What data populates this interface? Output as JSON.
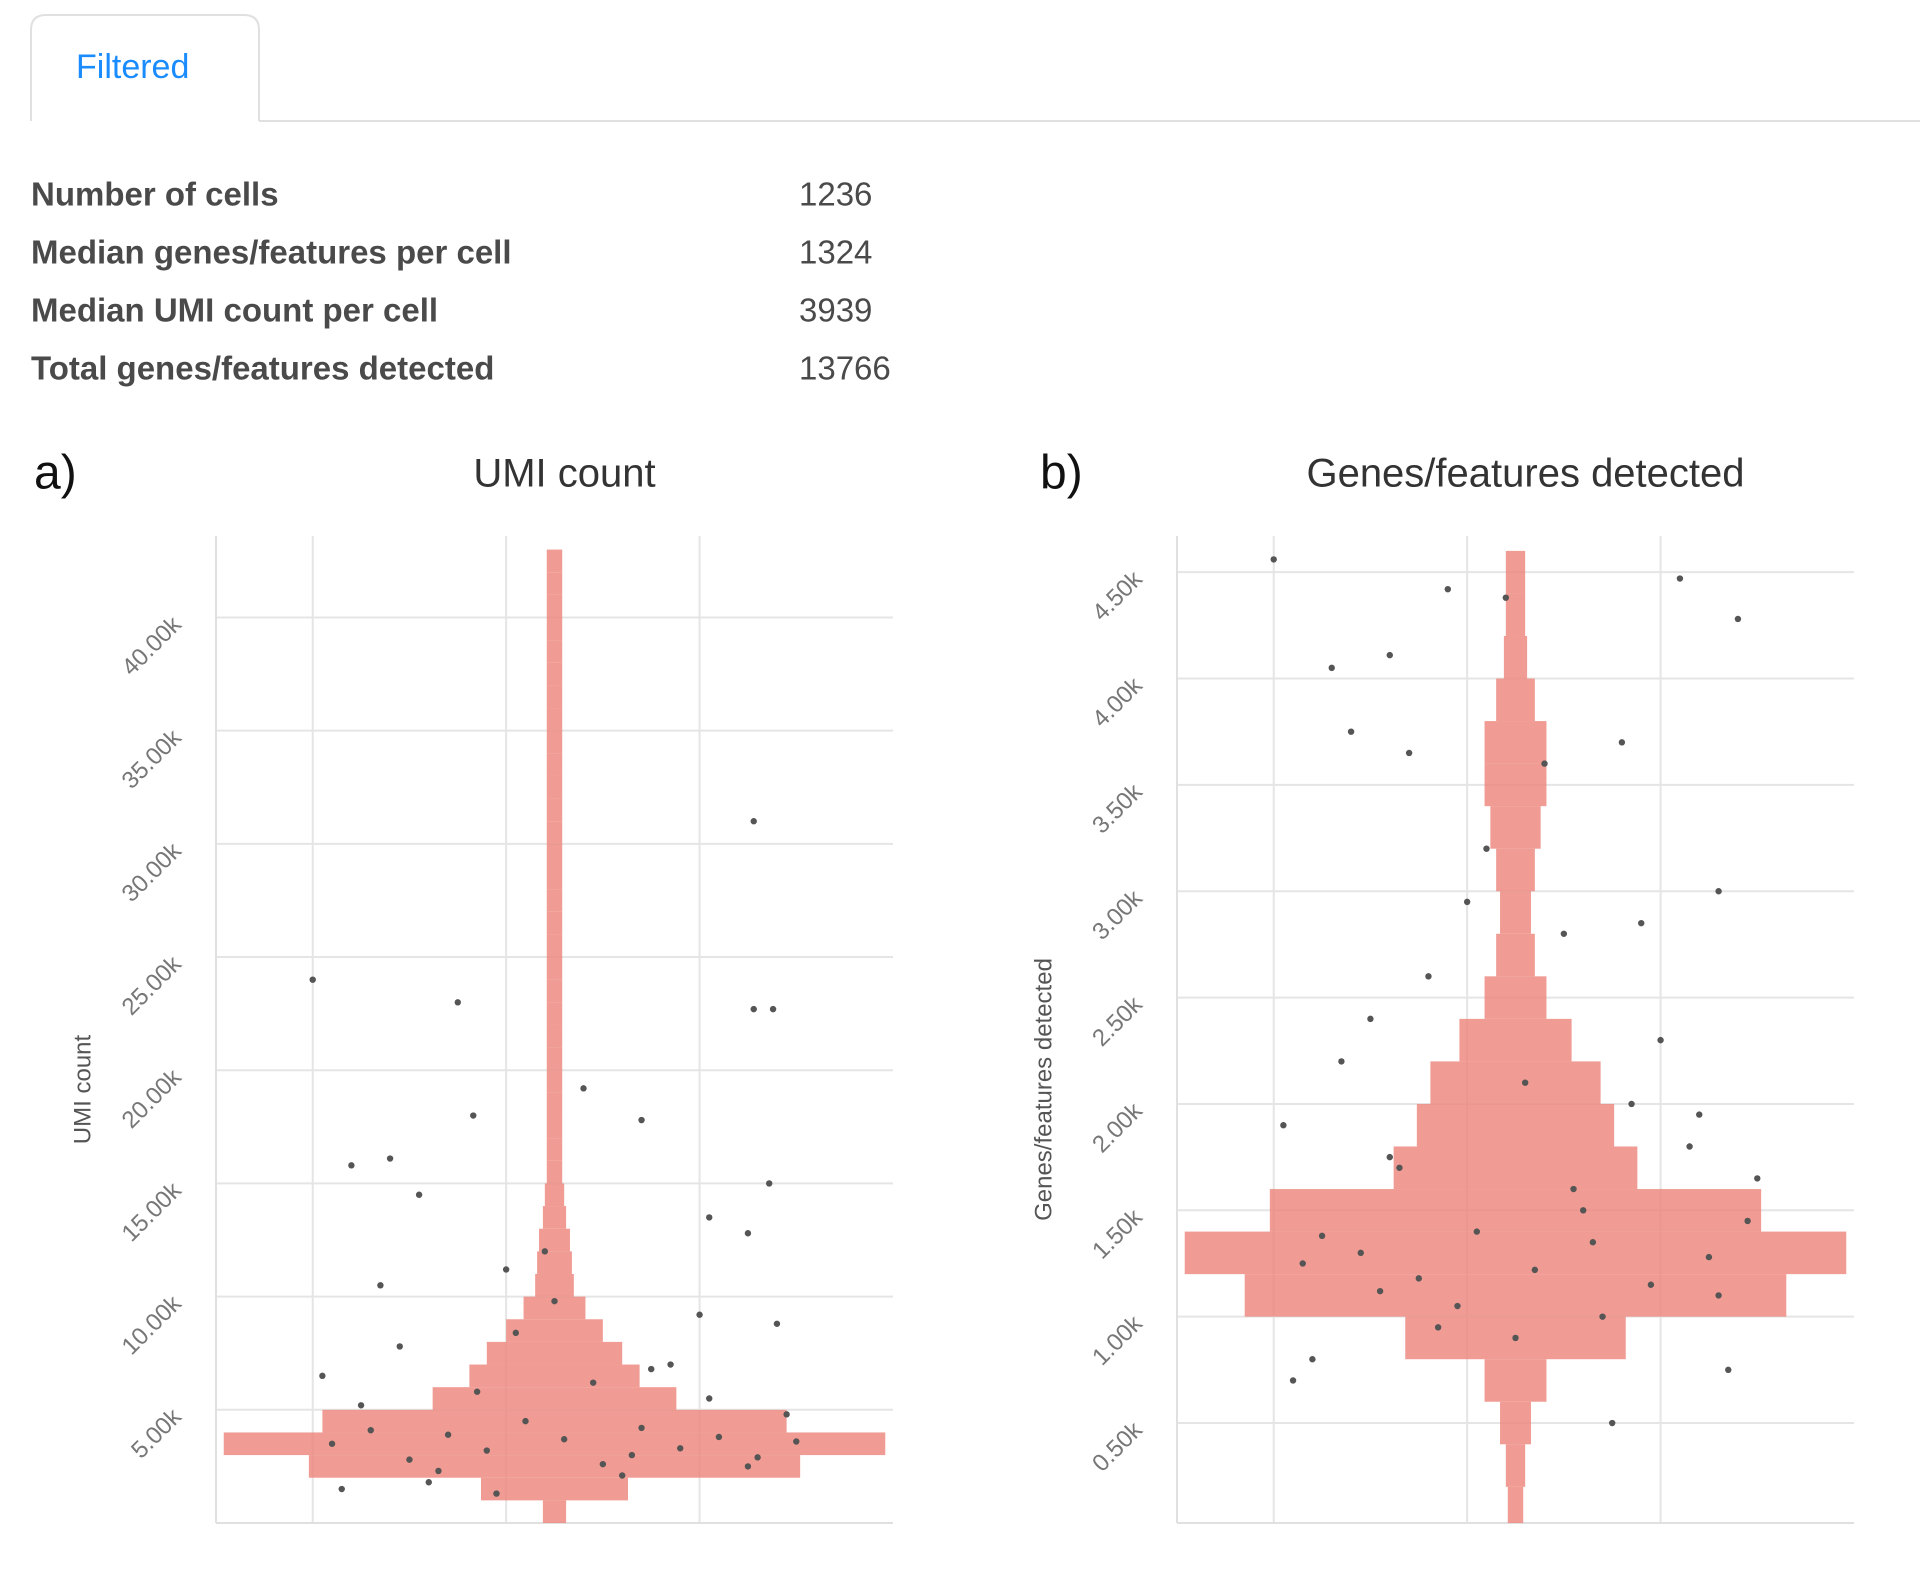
{
  "tab": "Filtered",
  "summary": {
    "rows": [
      [
        "Number of cells",
        1236
      ],
      [
        "Median genes/features per cell",
        1324
      ],
      [
        "Median UMI count per cell",
        3939
      ],
      [
        "Total genes/features detected",
        13766
      ]
    ]
  },
  "chart_data": [
    {
      "type": "violin",
      "panel": "a)",
      "title": "UMI count",
      "y_label": "UMI count",
      "ylim": [
        0,
        43600
      ],
      "yticks": [
        {
          "value": 5000,
          "label": "5.00k"
        },
        {
          "value": 10000,
          "label": "10.00k"
        },
        {
          "value": 15000,
          "label": "15.00k"
        },
        {
          "value": 20000,
          "label": "20.00k"
        },
        {
          "value": 25000,
          "label": "25.00k"
        },
        {
          "value": 30000,
          "label": "30.00k"
        },
        {
          "value": 35000,
          "label": "35.00k"
        },
        {
          "value": 40000,
          "label": "40.00k"
        }
      ],
      "xlim": [
        -0.5,
        3
      ],
      "xticks": [
        0,
        1,
        2
      ],
      "grid": true,
      "violin": {
        "color": "#ec8379",
        "center": 1.25,
        "bins": [
          0,
          1000,
          2000,
          3000,
          4000,
          5000,
          6000,
          7000,
          8000,
          9000,
          10000,
          11000,
          12000,
          13000,
          14000,
          15000,
          16000,
          17000,
          18000,
          19000,
          20000,
          21000,
          22000,
          23000,
          24000,
          25000,
          26000,
          27000,
          28000,
          29000,
          30000,
          31000,
          32000,
          33000,
          34000,
          35000,
          36000,
          37000,
          38000,
          39000,
          40000,
          41000,
          42000,
          43000
        ],
        "half_widths": [
          0.06,
          0.38,
          1.27,
          1.71,
          1.2,
          0.63,
          0.44,
          0.35,
          0.25,
          0.16,
          0.1,
          0.09,
          0.08,
          0.06,
          0.05,
          0.04,
          0.04,
          0.04,
          0.04,
          0.04,
          0.04,
          0.04,
          0.04,
          0.04,
          0.04,
          0.04,
          0.04,
          0.04,
          0.04,
          0.04,
          0.04,
          0.04,
          0.04,
          0.04,
          0.04,
          0.04,
          0.04,
          0.04,
          0.04,
          0.04,
          0.04,
          0.04,
          0.04
        ]
      },
      "points": {
        "color": "#555555",
        "x": [
          0.0,
          0.75,
          0.83,
          2.28,
          2.38,
          2.28,
          1.4,
          1.7,
          0.2,
          0.4,
          2.36,
          0.55,
          2.05,
          2.25,
          0.1,
          0.3,
          0.5,
          0.7,
          0.9,
          1.1,
          1.3,
          1.5,
          1.7,
          1.9,
          2.1,
          2.3,
          2.5,
          0.05,
          0.25,
          0.45,
          0.65,
          0.85,
          1.05,
          1.25,
          1.45,
          1.65,
          1.85,
          2.05,
          2.25,
          2.45,
          0.15,
          0.6,
          1.0,
          1.2,
          1.6,
          2.0,
          2.4,
          0.35,
          0.95,
          1.75
        ],
        "values": [
          24000,
          23000,
          18000,
          22700,
          22700,
          31000,
          19200,
          17800,
          15800,
          16100,
          15000,
          14500,
          13500,
          12800,
          3500,
          4100,
          2800,
          3900,
          3200,
          4500,
          3700,
          2600,
          4200,
          3300,
          3800,
          2900,
          3600,
          6500,
          5200,
          7800,
          2300,
          5800,
          8400,
          9800,
          6200,
          3000,
          7000,
          5500,
          2500,
          4800,
          1500,
          1800,
          11200,
          12000,
          2100,
          9200,
          8800,
          10500,
          1300,
          6800
        ]
      }
    },
    {
      "type": "violin",
      "panel": "b)",
      "title": "Genes/features detected",
      "y_label": "Genes/features detected",
      "ylim": [
        30,
        4670
      ],
      "yticks": [
        {
          "value": 500,
          "label": "0.50k"
        },
        {
          "value": 1000,
          "label": "1.00k"
        },
        {
          "value": 1500,
          "label": "1.50k"
        },
        {
          "value": 2000,
          "label": "2.00k"
        },
        {
          "value": 2500,
          "label": "2.50k"
        },
        {
          "value": 3000,
          "label": "3.00k"
        },
        {
          "value": 3500,
          "label": "3.50k"
        },
        {
          "value": 4000,
          "label": "4.00k"
        },
        {
          "value": 4500,
          "label": "4.50k"
        }
      ],
      "xlim": [
        -0.5,
        3
      ],
      "xticks": [
        0,
        1,
        2
      ],
      "grid": true,
      "violin": {
        "color": "#ec8379",
        "center": 1.25,
        "bins": [
          0,
          200,
          400,
          600,
          800,
          1000,
          1200,
          1400,
          1600,
          1800,
          2000,
          2200,
          2400,
          2600,
          2800,
          3000,
          3200,
          3400,
          3600,
          3800,
          4000,
          4200,
          4400,
          4600
        ],
        "half_widths": [
          0.04,
          0.05,
          0.08,
          0.16,
          0.57,
          1.4,
          1.71,
          1.27,
          0.63,
          0.51,
          0.44,
          0.29,
          0.16,
          0.1,
          0.08,
          0.1,
          0.13,
          0.16,
          0.16,
          0.1,
          0.06,
          0.05,
          0.05
        ]
      },
      "points": {
        "color": "#555555",
        "x": [
          0.0,
          0.3,
          0.6,
          0.9,
          1.2,
          1.5,
          1.8,
          2.1,
          2.4,
          0.15,
          0.45,
          0.75,
          1.05,
          1.35,
          1.65,
          1.95,
          2.25,
          0.05,
          0.35,
          0.65,
          0.95,
          1.25,
          1.55,
          1.85,
          2.15,
          2.45,
          0.2,
          0.5,
          0.8,
          1.1,
          1.4,
          1.7,
          2.0,
          2.3,
          0.1,
          0.4,
          0.7,
          1.0,
          1.3,
          1.6,
          1.9,
          2.2,
          2.5,
          0.25,
          0.55,
          0.85,
          2.35,
          1.75,
          0.6,
          2.3
        ],
        "values": [
          4560,
          4050,
          4110,
          4420,
          4380,
          2800,
          3700,
          4470,
          4280,
          1250,
          1300,
          1180,
          1400,
          1220,
          1350,
          1150,
          1280,
          1900,
          2200,
          1700,
          1050,
          900,
          1600,
          2000,
          1800,
          1450,
          800,
          2400,
          2600,
          3200,
          3600,
          1000,
          2300,
          1100,
          700,
          3750,
          3650,
          2950,
          2100,
          1500,
          2850,
          1950,
          1650,
          1380,
          1120,
          950,
          750,
          500,
          1750,
          3000
        ]
      }
    }
  ]
}
